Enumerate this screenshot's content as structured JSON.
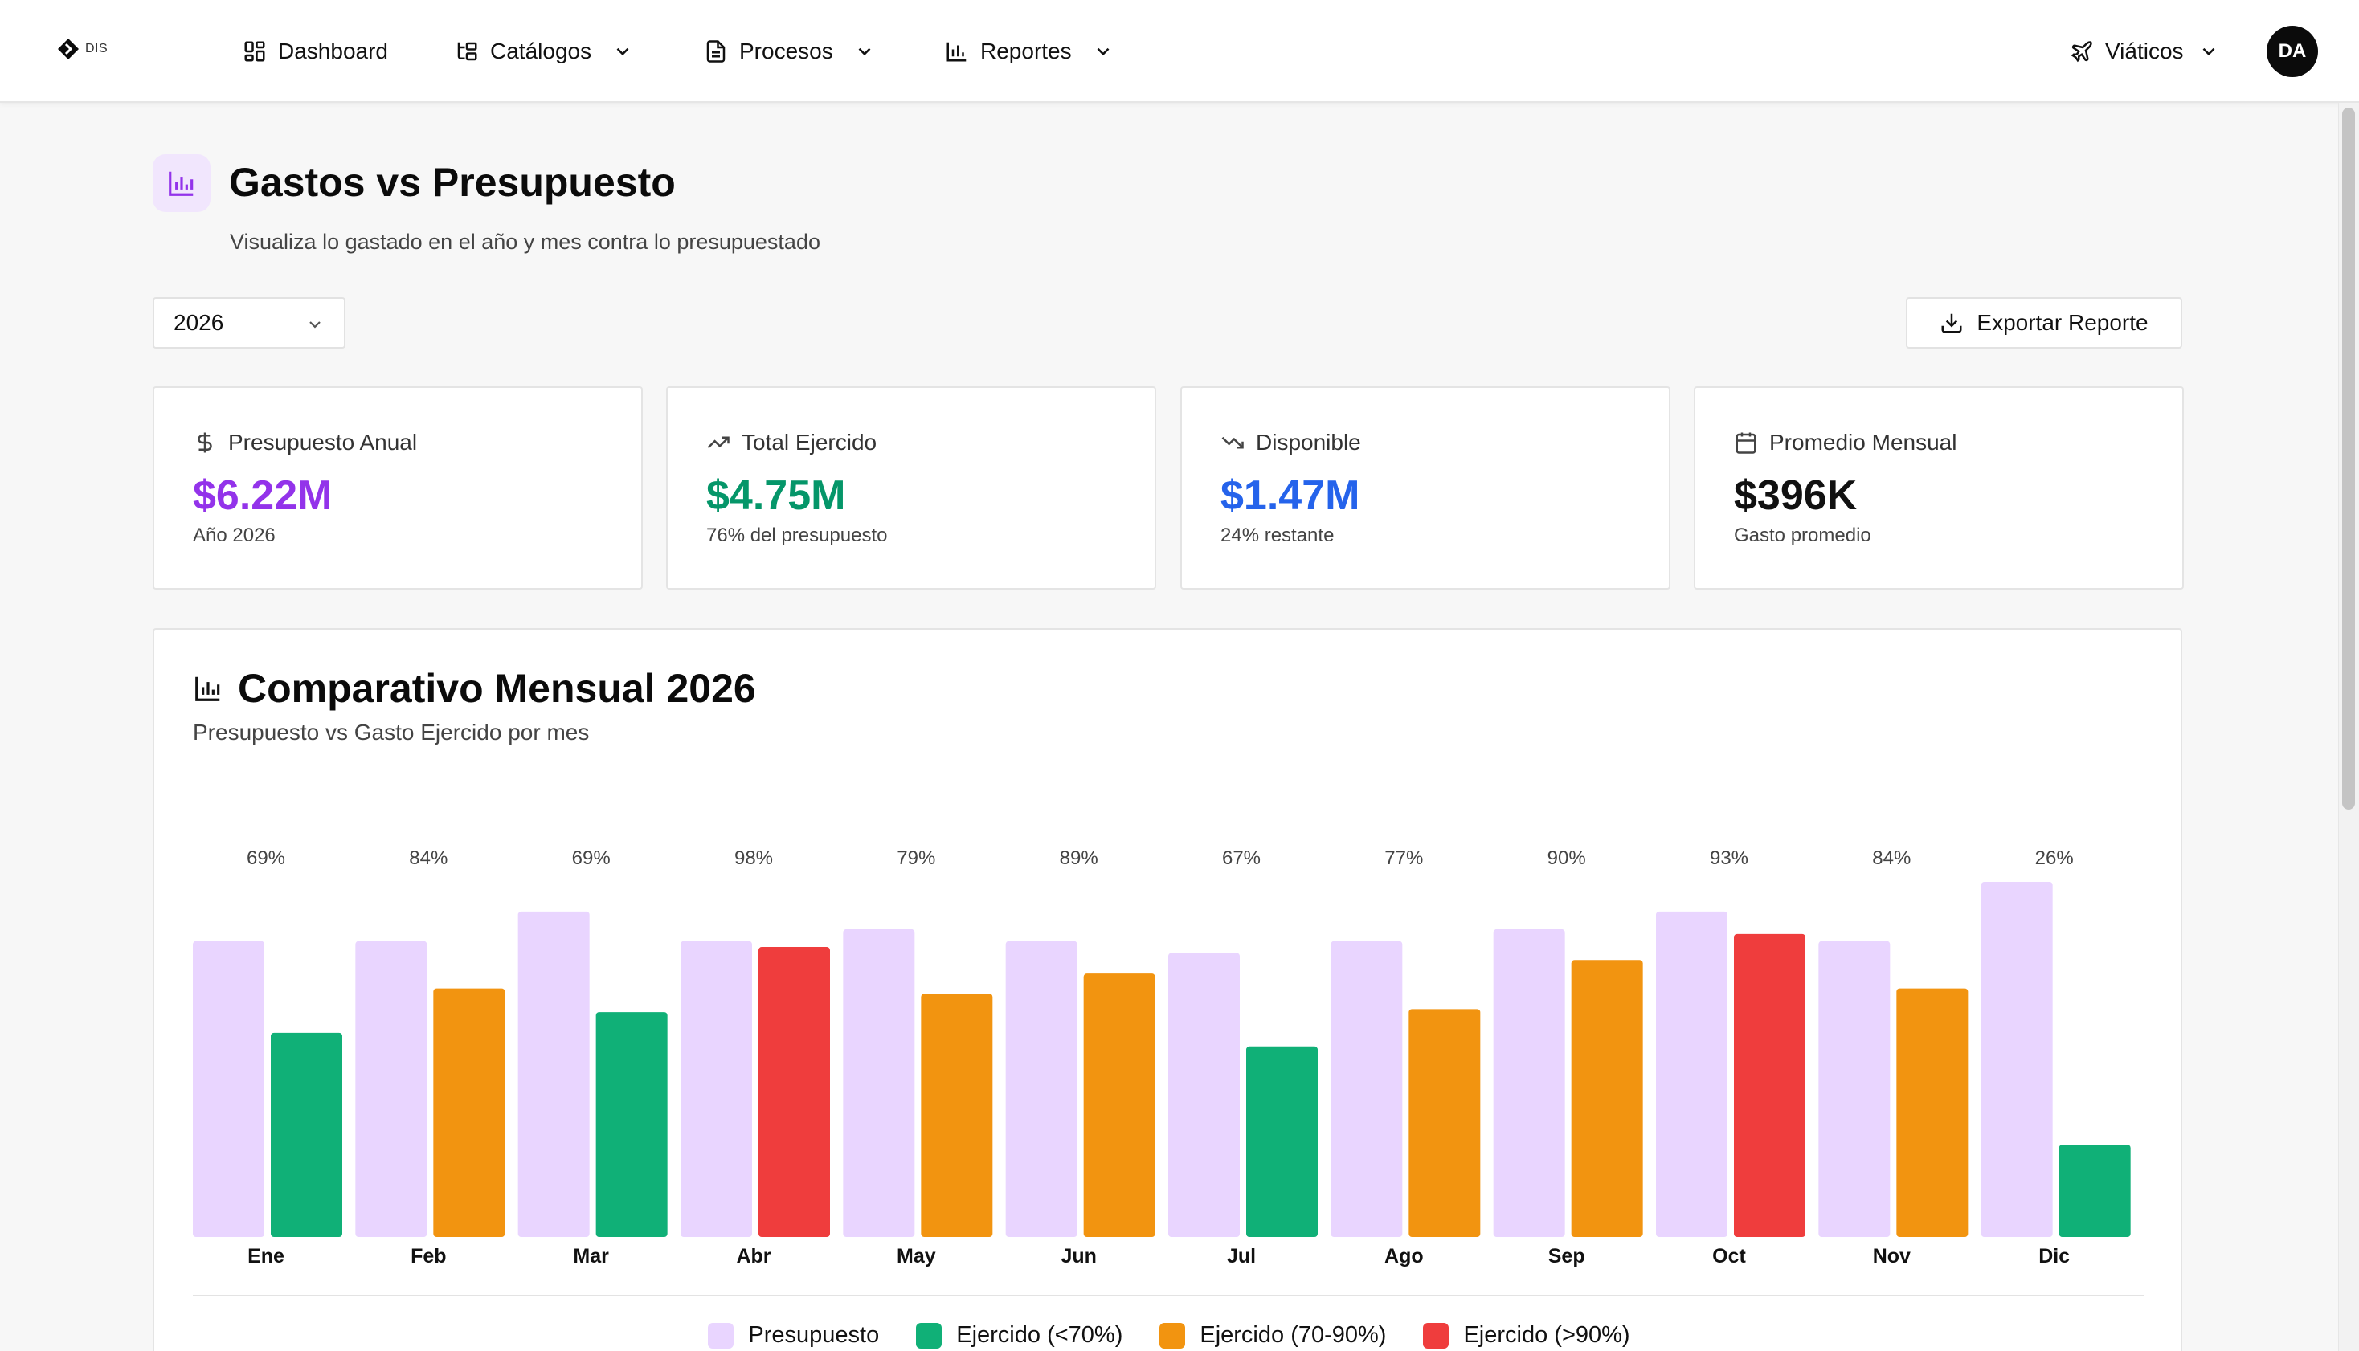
{
  "nav": {
    "logo_text": "DIS",
    "items": [
      {
        "label": "Dashboard"
      },
      {
        "label": "Catálogos"
      },
      {
        "label": "Procesos"
      },
      {
        "label": "Reportes"
      }
    ],
    "module": "Viáticos",
    "avatar_initials": "DA"
  },
  "header": {
    "title": "Gastos vs Presupuesto",
    "subtitle": "Visualiza lo gastado en el año y mes contra lo presupuestado"
  },
  "controls": {
    "year_selected": "2026",
    "export_label": "Exportar Reporte"
  },
  "stats": [
    {
      "label": "Presupuesto Anual",
      "value": "$6.22M",
      "note": "Año 2026",
      "color": "#9333ea",
      "icon": "dollar-icon"
    },
    {
      "label": "Total Ejercido",
      "value": "$4.75M",
      "note": "76% del presupuesto",
      "color": "#059669",
      "icon": "trending-up-icon"
    },
    {
      "label": "Disponible",
      "value": "$1.47M",
      "note": "24% restante",
      "color": "#2563eb",
      "icon": "trending-down-icon"
    },
    {
      "label": "Promedio Mensual",
      "value": "$396K",
      "note": "Gasto promedio",
      "color": "#111111",
      "icon": "calendar-icon"
    }
  ],
  "chart": {
    "title": "Comparativo Mensual 2026",
    "subtitle": "Presupuesto vs Gasto Ejercido por mes"
  },
  "chart_data": {
    "type": "bar",
    "title": "Comparativo Mensual 2026",
    "subtitle": "Presupuesto vs Gasto Ejercido por mes",
    "categories": [
      "Ene",
      "Feb",
      "Mar",
      "Abr",
      "May",
      "Jun",
      "Jul",
      "Ago",
      "Sep",
      "Oct",
      "Nov",
      "Dic"
    ],
    "series": [
      {
        "name": "Presupuesto",
        "values": [
          500,
          500,
          550,
          500,
          520,
          500,
          480,
          500,
          520,
          550,
          500,
          600
        ],
        "color": "#e9d5ff"
      },
      {
        "name": "Ejercido",
        "values": [
          345,
          420,
          380,
          490,
          411,
          445,
          322,
          385,
          468,
          512,
          420,
          156
        ]
      }
    ],
    "percent_labels": [
      "69%",
      "84%",
      "69%",
      "98%",
      "79%",
      "89%",
      "67%",
      "77%",
      "90%",
      "93%",
      "84%",
      "26%"
    ],
    "ylim": [
      0,
      600
    ],
    "legend": [
      {
        "label": "Presupuesto",
        "color": "#e9d5ff"
      },
      {
        "label": "Ejercido (<70%)",
        "color": "#10b077"
      },
      {
        "label": "Ejercido (70-90%)",
        "color": "#f29410"
      },
      {
        "label": "Ejercido (>90%)",
        "color": "#ef3d3d"
      }
    ],
    "legend_position": "bottom",
    "grid": false
  }
}
